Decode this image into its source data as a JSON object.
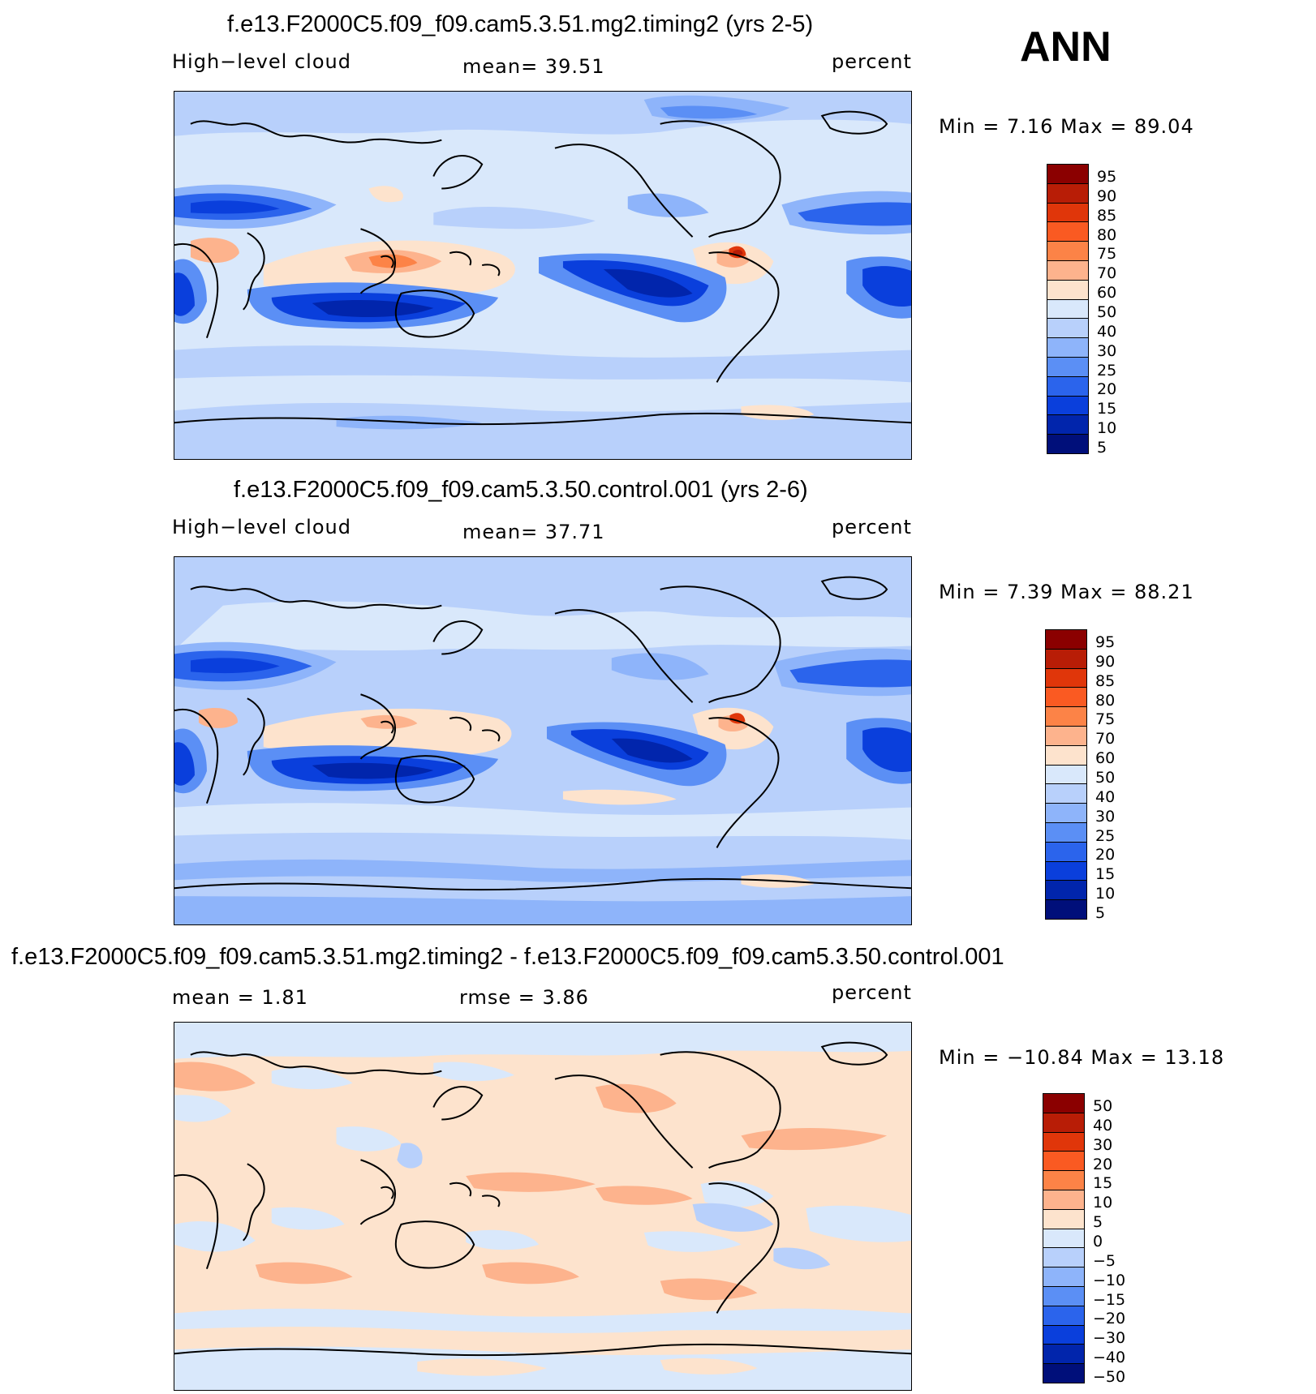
{
  "season": "ANN",
  "panels": [
    {
      "title": "f.e13.F2000C5.f09_f09.cam5.3.51.mg2.timing2 (yrs 2-5)",
      "left_label": "High−level cloud",
      "center_label": "mean=   39.51",
      "right_label": "percent",
      "minmax": "Min =    7.16  Max =    89.04",
      "colorbar": {
        "colors": [
          "#8b0000",
          "#b81d06",
          "#e0360a",
          "#fa5a22",
          "#fc8347",
          "#fdb38d",
          "#fde3cd",
          "#d9e8fb",
          "#b8d0fb",
          "#8eb4fa",
          "#5b8ff5",
          "#2b64ec",
          "#0a3fdc",
          "#0125ac",
          "#000f7a"
        ],
        "labels": [
          "95",
          "90",
          "85",
          "80",
          "75",
          "70",
          "60",
          "50",
          "40",
          "30",
          "25",
          "20",
          "15",
          "10",
          "5"
        ]
      }
    },
    {
      "title": "f.e13.F2000C5.f09_f09.cam5.3.50.control.001 (yrs 2-6)",
      "left_label": "High−level cloud",
      "center_label": "mean=   37.71",
      "right_label": "percent",
      "minmax": "Min =    7.39  Max =    88.21",
      "colorbar": {
        "colors": [
          "#8b0000",
          "#b81d06",
          "#e0360a",
          "#fa5a22",
          "#fc8347",
          "#fdb38d",
          "#fde3cd",
          "#d9e8fb",
          "#b8d0fb",
          "#8eb4fa",
          "#5b8ff5",
          "#2b64ec",
          "#0a3fdc",
          "#0125ac",
          "#000f7a"
        ],
        "labels": [
          "95",
          "90",
          "85",
          "80",
          "75",
          "70",
          "60",
          "50",
          "40",
          "30",
          "25",
          "20",
          "15",
          "10",
          "5"
        ]
      }
    },
    {
      "title": "f.e13.F2000C5.f09_f09.cam5.3.51.mg2.timing2 - f.e13.F2000C5.f09_f09.cam5.3.50.control.001",
      "left_label": "mean =    1.81",
      "center_label": "rmse =    3.86",
      "right_label": "percent",
      "minmax": "Min = −10.84  Max =   13.18",
      "colorbar": {
        "colors": [
          "#8b0000",
          "#b81d06",
          "#e0360a",
          "#fa5a22",
          "#fc8347",
          "#fdb38d",
          "#fde3cd",
          "#d9e8fb",
          "#b8d0fb",
          "#8eb4fa",
          "#5b8ff5",
          "#2b64ec",
          "#0a3fdc",
          "#0125ac",
          "#000f7a"
        ],
        "labels": [
          "50",
          "40",
          "30",
          "20",
          "15",
          "10",
          "5",
          "0",
          "−5",
          "−10",
          "−15",
          "−20",
          "−30",
          "−40",
          "−50"
        ]
      }
    }
  ]
}
